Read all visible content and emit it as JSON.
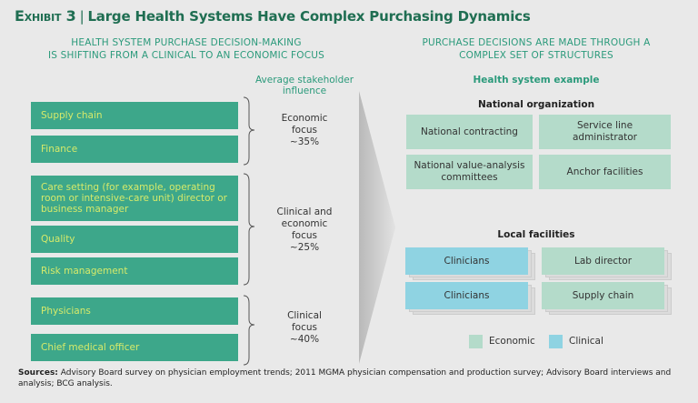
{
  "title": {
    "exhibit": "Exhibit 3",
    "separator": "|",
    "text": "Large Health Systems Have Complex Purchasing Dynamics"
  },
  "left": {
    "subtitle": [
      "HEALTH SYSTEM PURCHASE DECISION-MAKING",
      "IS SHIFTING FROM A CLINICAL TO AN ECONOMIC FOCUS"
    ],
    "influence_header": [
      "Average stakeholder",
      "influence"
    ],
    "stakeholders": [
      "Supply chain",
      "Finance",
      "Care setting (for example, operating room or intensive-care unit) director or business manager",
      "Quality",
      "Risk management",
      "Physicians",
      "Chief medical officer"
    ],
    "groups": [
      {
        "label": [
          "Economic",
          "focus",
          "~35%"
        ]
      },
      {
        "label": [
          "Clinical and",
          "economic",
          "focus",
          "~25%"
        ]
      },
      {
        "label": [
          "Clinical",
          "focus",
          "~40%"
        ]
      }
    ]
  },
  "right": {
    "subtitle": [
      "PURCHASE DECISIONS ARE MADE THROUGH A",
      "COMPLEX SET OF STRUCTURES"
    ],
    "example_header": "Health system example",
    "national": {
      "title": "National organization",
      "items": [
        "National contracting",
        "Service line administrator",
        "National value-analysis committees",
        "Anchor facilities"
      ]
    },
    "local": {
      "title": "Local facilities",
      "items": [
        {
          "label": "Clinicians",
          "type": "clinical"
        },
        {
          "label": "Lab director",
          "type": "economic"
        },
        {
          "label": "Clinicians",
          "type": "clinical"
        },
        {
          "label": "Supply chain",
          "type": "economic"
        }
      ]
    },
    "legend": [
      {
        "label": "Economic",
        "color": "#b4dbca"
      },
      {
        "label": "Clinical",
        "color": "#8fd3e2"
      }
    ]
  },
  "sources": {
    "label": "Sources:",
    "text": " Advisory Board survey on physician employment trends; 2011 MGMA physician compensation and production survey; Advisory Board interviews and analysis; BCG analysis."
  },
  "colors": {
    "stakeholder_box": "#3da78a",
    "stakeholder_text": "#d6ea6a",
    "economic": "#b4dbca",
    "clinical": "#8fd3e2",
    "title": "#1f6e52"
  }
}
